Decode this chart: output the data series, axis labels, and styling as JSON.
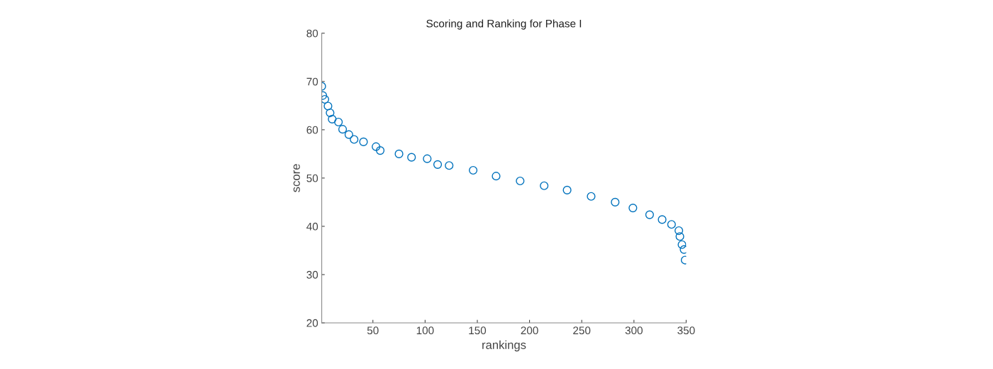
{
  "chart_data": {
    "type": "scatter",
    "title": "Scoring and Ranking for Phase I",
    "xlabel": "rankings",
    "ylabel": "score",
    "x": [
      1,
      2,
      4,
      7,
      9,
      11,
      17,
      21,
      27,
      32,
      41,
      53,
      57,
      75,
      87,
      102,
      112,
      123,
      146,
      168,
      191,
      214,
      236,
      259,
      282,
      299,
      315,
      327,
      336,
      343,
      344,
      346,
      348,
      349
    ],
    "series": [
      {
        "color": "#0072bd",
        "values": [
          69.0,
          67.1,
          66.3,
          64.9,
          63.5,
          62.2,
          61.6,
          60.1,
          59.0,
          58.0,
          57.5,
          56.5,
          55.7,
          55.0,
          54.3,
          54.0,
          52.8,
          52.6,
          51.6,
          50.4,
          49.4,
          48.4,
          47.5,
          46.2,
          45.0,
          43.8,
          42.4,
          41.4,
          40.4,
          39.1,
          37.9,
          36.2,
          35.2,
          33.0
        ]
      }
    ],
    "marker": "circle",
    "xlim": [
      1,
      350
    ],
    "xticks": [
      50,
      100,
      150,
      200,
      250,
      300,
      350
    ],
    "ylim": [
      20,
      80
    ],
    "yticks": [
      20,
      30,
      40,
      50,
      60,
      70,
      80
    ]
  }
}
